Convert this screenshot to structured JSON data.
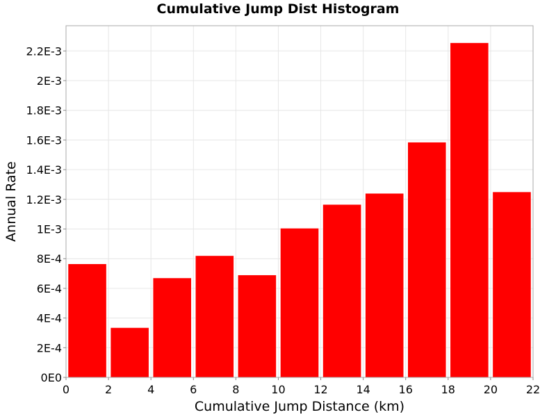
{
  "chart_data": {
    "type": "bar",
    "title": "Cumulative Jump Dist Histogram",
    "xlabel": "Cumulative Jump Distance (km)",
    "ylabel": "Annual Rate",
    "bar_color": "#ff0000",
    "grid": true,
    "xlim": [
      0,
      22
    ],
    "ylim": [
      0,
      0.00237
    ],
    "x_ticks": [
      0,
      2,
      4,
      6,
      8,
      10,
      12,
      14,
      16,
      18,
      20,
      22
    ],
    "y_ticks": [
      {
        "value": 0,
        "label": "0E0"
      },
      {
        "value": 0.0002,
        "label": "2E-4"
      },
      {
        "value": 0.0004,
        "label": "4E-4"
      },
      {
        "value": 0.0006,
        "label": "6E-4"
      },
      {
        "value": 0.0008,
        "label": "8E-4"
      },
      {
        "value": 0.001,
        "label": "1E-3"
      },
      {
        "value": 0.0012,
        "label": "1.2E-3"
      },
      {
        "value": 0.0014,
        "label": "1.4E-3"
      },
      {
        "value": 0.0016,
        "label": "1.6E-3"
      },
      {
        "value": 0.0018,
        "label": "1.8E-3"
      },
      {
        "value": 0.002,
        "label": "2E-3"
      },
      {
        "value": 0.0022,
        "label": "2.2E-3"
      }
    ],
    "bins": [
      {
        "x0": 0,
        "x1": 2,
        "value": 0.000765
      },
      {
        "x0": 2,
        "x1": 4,
        "value": 0.000335
      },
      {
        "x0": 4,
        "x1": 6,
        "value": 0.00067
      },
      {
        "x0": 6,
        "x1": 8,
        "value": 0.00082
      },
      {
        "x0": 8,
        "x1": 10,
        "value": 0.00069
      },
      {
        "x0": 10,
        "x1": 12,
        "value": 0.001005
      },
      {
        "x0": 12,
        "x1": 14,
        "value": 0.001165
      },
      {
        "x0": 14,
        "x1": 16,
        "value": 0.00124
      },
      {
        "x0": 16,
        "x1": 18,
        "value": 0.001585
      },
      {
        "x0": 18,
        "x1": 20,
        "value": 0.002255
      },
      {
        "x0": 20,
        "x1": 22,
        "value": 0.00125
      }
    ]
  }
}
